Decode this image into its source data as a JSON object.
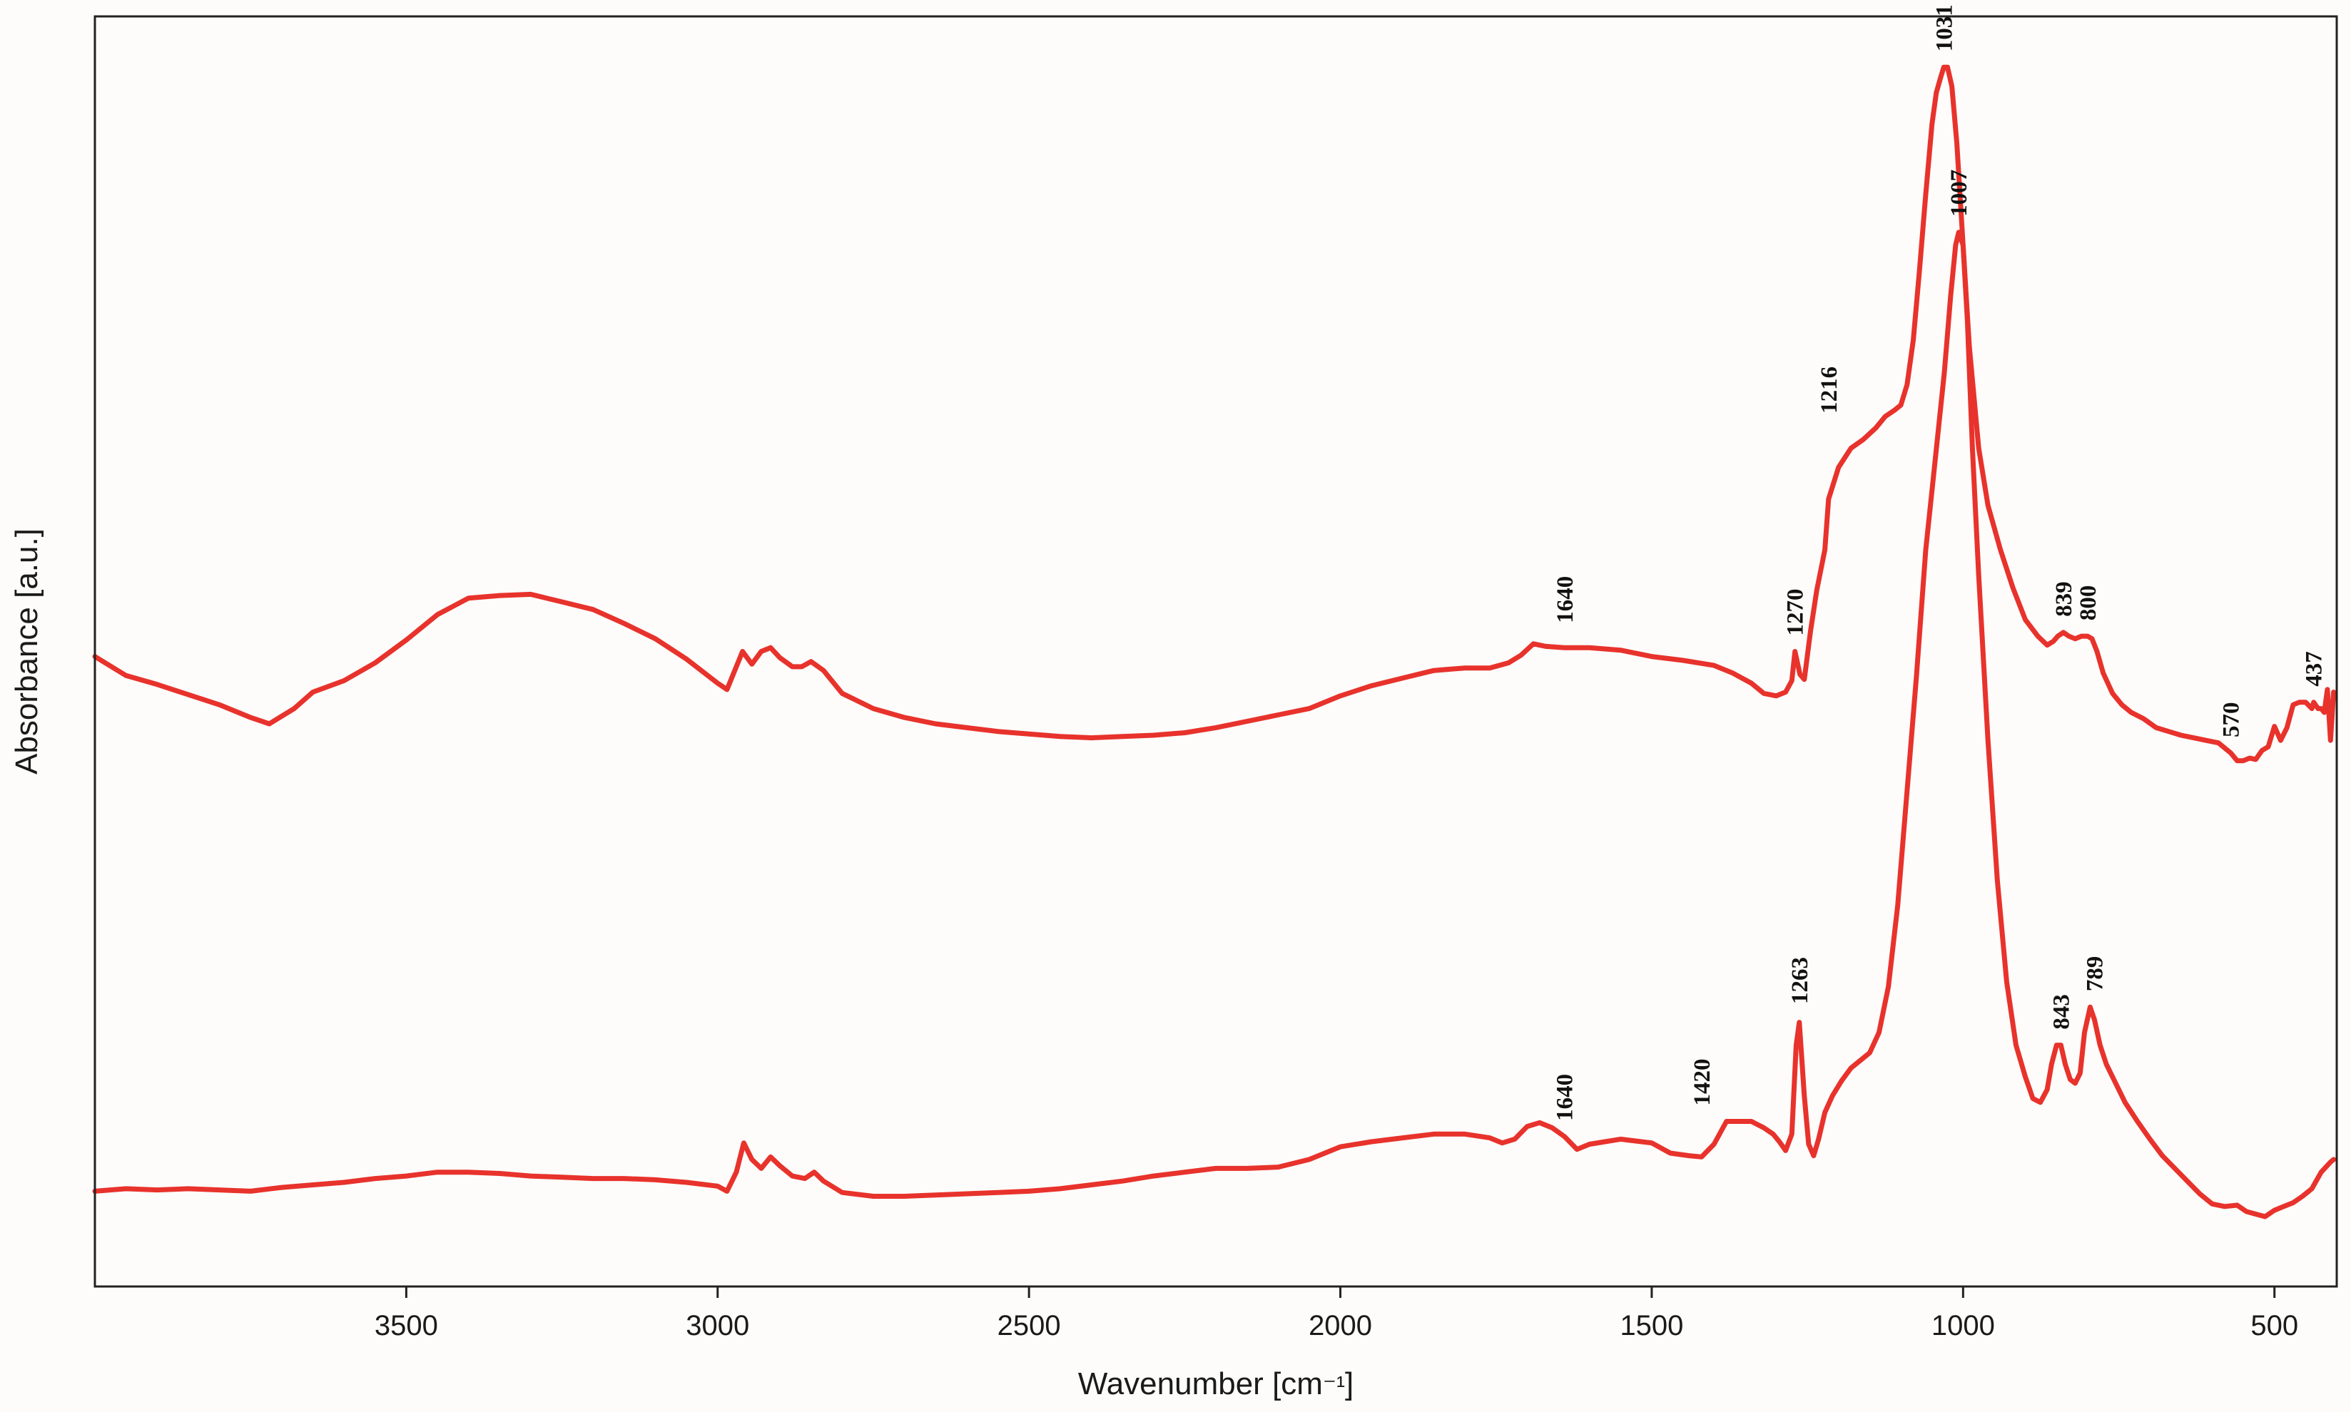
{
  "chart_data": {
    "type": "line",
    "title": "",
    "xlabel": "Wavenumber [cm⁻¹]",
    "ylabel": "Absorbance [a.u.]",
    "x_reversed": true,
    "xlim": [
      4000,
      400
    ],
    "ylim": [
      0,
      1
    ],
    "y_ticks_shown": false,
    "x_ticks": [
      3500,
      3000,
      2500,
      2000,
      1500,
      1000,
      500
    ],
    "x_tick_labels": [
      "3500",
      "3000",
      "2500",
      "2000",
      "1500",
      "1000",
      "500"
    ],
    "grid": false,
    "line_color": "#e8322c",
    "series": [
      {
        "x": [
          4000,
          3950,
          3900,
          3850,
          3800,
          3750,
          3720,
          3680,
          3650,
          3600,
          3550,
          3500,
          3450,
          3400,
          3350,
          3300,
          3250,
          3200,
          3150,
          3100,
          3050,
          3000,
          2985,
          2960,
          2945,
          2930,
          2915,
          2900,
          2880,
          2865,
          2850,
          2830,
          2800,
          2750,
          2700,
          2650,
          2600,
          2550,
          2500,
          2450,
          2400,
          2350,
          2300,
          2250,
          2200,
          2150,
          2100,
          2050,
          2000,
          1950,
          1900,
          1850,
          1800,
          1760,
          1730,
          1710,
          1690,
          1670,
          1640,
          1600,
          1550,
          1500,
          1450,
          1400,
          1370,
          1340,
          1320,
          1300,
          1285,
          1275,
          1270,
          1262,
          1255,
          1245,
          1235,
          1222,
          1216,
          1200,
          1180,
          1160,
          1140,
          1125,
          1110,
          1100,
          1090,
          1080,
          1070,
          1060,
          1050,
          1043,
          1036,
          1031,
          1025,
          1018,
          1010,
          1000,
          990,
          975,
          960,
          940,
          920,
          900,
          880,
          865,
          855,
          848,
          839,
          830,
          820,
          810,
          800,
          793,
          785,
          775,
          760,
          745,
          730,
          710,
          690,
          670,
          650,
          630,
          610,
          590,
          575,
          570,
          560,
          550,
          540,
          530,
          520,
          510,
          500,
          490,
          480,
          470,
          460,
          450,
          440,
          437,
          430,
          425,
          420,
          415,
          410,
          405
        ],
        "y": [
          0.496,
          0.481,
          0.474,
          0.466,
          0.458,
          0.448,
          0.443,
          0.455,
          0.468,
          0.477,
          0.491,
          0.509,
          0.529,
          0.542,
          0.544,
          0.545,
          0.539,
          0.533,
          0.522,
          0.51,
          0.494,
          0.475,
          0.47,
          0.5,
          0.49,
          0.5,
          0.503,
          0.495,
          0.488,
          0.488,
          0.492,
          0.485,
          0.467,
          0.455,
          0.448,
          0.443,
          0.44,
          0.437,
          0.435,
          0.433,
          0.432,
          0.433,
          0.434,
          0.436,
          0.44,
          0.445,
          0.45,
          0.455,
          0.465,
          0.473,
          0.479,
          0.485,
          0.487,
          0.487,
          0.491,
          0.497,
          0.506,
          0.504,
          0.503,
          0.503,
          0.501,
          0.496,
          0.493,
          0.489,
          0.483,
          0.475,
          0.467,
          0.465,
          0.468,
          0.477,
          0.5,
          0.482,
          0.478,
          0.516,
          0.548,
          0.58,
          0.62,
          0.645,
          0.66,
          0.667,
          0.676,
          0.685,
          0.69,
          0.694,
          0.71,
          0.745,
          0.8,
          0.86,
          0.915,
          0.94,
          0.952,
          0.96,
          0.96,
          0.945,
          0.9,
          0.82,
          0.74,
          0.66,
          0.615,
          0.58,
          0.55,
          0.525,
          0.512,
          0.505,
          0.508,
          0.512,
          0.515,
          0.512,
          0.51,
          0.512,
          0.512,
          0.51,
          0.5,
          0.483,
          0.467,
          0.458,
          0.452,
          0.447,
          0.44,
          0.437,
          0.434,
          0.432,
          0.43,
          0.428,
          0.422,
          0.42,
          0.414,
          0.414,
          0.416,
          0.415,
          0.422,
          0.425,
          0.441,
          0.43,
          0.44,
          0.458,
          0.46,
          0.46,
          0.455,
          0.46,
          0.455,
          0.455,
          0.452,
          0.47,
          0.43,
          0.468
        ]
      },
      {
        "x": [
          4000,
          3950,
          3900,
          3850,
          3800,
          3750,
          3700,
          3650,
          3600,
          3550,
          3500,
          3450,
          3400,
          3350,
          3300,
          3250,
          3200,
          3150,
          3100,
          3050,
          3000,
          2985,
          2970,
          2958,
          2945,
          2930,
          2915,
          2900,
          2880,
          2860,
          2845,
          2830,
          2800,
          2750,
          2700,
          2650,
          2600,
          2550,
          2500,
          2450,
          2400,
          2350,
          2300,
          2250,
          2200,
          2150,
          2100,
          2050,
          2000,
          1950,
          1900,
          1850,
          1800,
          1760,
          1740,
          1720,
          1700,
          1680,
          1660,
          1640,
          1620,
          1600,
          1550,
          1500,
          1470,
          1440,
          1420,
          1400,
          1380,
          1360,
          1340,
          1320,
          1305,
          1295,
          1285,
          1275,
          1268,
          1263,
          1255,
          1248,
          1240,
          1232,
          1222,
          1210,
          1195,
          1180,
          1165,
          1150,
          1135,
          1120,
          1105,
          1090,
          1075,
          1060,
          1045,
          1030,
          1020,
          1012,
          1007,
          1000,
          993,
          985,
          975,
          960,
          945,
          930,
          915,
          900,
          888,
          876,
          865,
          858,
          850,
          843,
          836,
          828,
          820,
          812,
          805,
          796,
          789,
          780,
          770,
          755,
          740,
          720,
          700,
          680,
          660,
          640,
          620,
          600,
          580,
          560,
          545,
          530,
          515,
          500,
          485,
          470,
          455,
          440,
          425,
          410,
          405
        ],
        "y": [
          0.075,
          0.077,
          0.076,
          0.077,
          0.076,
          0.075,
          0.078,
          0.08,
          0.082,
          0.085,
          0.087,
          0.09,
          0.09,
          0.089,
          0.087,
          0.086,
          0.085,
          0.085,
          0.084,
          0.082,
          0.079,
          0.075,
          0.09,
          0.113,
          0.1,
          0.093,
          0.102,
          0.095,
          0.087,
          0.085,
          0.09,
          0.083,
          0.074,
          0.071,
          0.071,
          0.072,
          0.073,
          0.074,
          0.075,
          0.077,
          0.08,
          0.083,
          0.087,
          0.09,
          0.093,
          0.093,
          0.094,
          0.1,
          0.11,
          0.114,
          0.117,
          0.12,
          0.12,
          0.117,
          0.113,
          0.116,
          0.126,
          0.129,
          0.125,
          0.118,
          0.108,
          0.112,
          0.116,
          0.113,
          0.105,
          0.103,
          0.102,
          0.112,
          0.13,
          0.13,
          0.13,
          0.125,
          0.12,
          0.114,
          0.107,
          0.12,
          0.19,
          0.208,
          0.15,
          0.112,
          0.103,
          0.116,
          0.137,
          0.15,
          0.162,
          0.172,
          0.178,
          0.184,
          0.2,
          0.236,
          0.3,
          0.39,
          0.48,
          0.58,
          0.65,
          0.72,
          0.78,
          0.82,
          0.83,
          0.82,
          0.76,
          0.66,
          0.56,
          0.43,
          0.32,
          0.24,
          0.19,
          0.165,
          0.148,
          0.145,
          0.155,
          0.175,
          0.19,
          0.19,
          0.175,
          0.163,
          0.16,
          0.168,
          0.2,
          0.22,
          0.21,
          0.19,
          0.175,
          0.16,
          0.145,
          0.13,
          0.116,
          0.103,
          0.093,
          0.083,
          0.073,
          0.065,
          0.063,
          0.064,
          0.059,
          0.057,
          0.055,
          0.06,
          0.063,
          0.066,
          0.071,
          0.077,
          0.09,
          0.098,
          0.1
        ]
      }
    ],
    "annotations": [
      {
        "text": "1031",
        "x": 1031,
        "y": 0.96
      },
      {
        "text": "1216",
        "x": 1216,
        "y": 0.675
      },
      {
        "text": "1640",
        "x": 1640,
        "y": 0.51
      },
      {
        "text": "1270",
        "x": 1270,
        "y": 0.5
      },
      {
        "text": "839",
        "x": 839,
        "y": 0.515
      },
      {
        "text": "800",
        "x": 800,
        "y": 0.512
      },
      {
        "text": "570",
        "x": 570,
        "y": 0.42
      },
      {
        "text": "437",
        "x": 437,
        "y": 0.46
      },
      {
        "text": "1007",
        "x": 1007,
        "y": 0.83
      },
      {
        "text": "1640",
        "x": 1640,
        "y": 0.118
      },
      {
        "text": "1420",
        "x": 1420,
        "y": 0.13
      },
      {
        "text": "1263",
        "x": 1263,
        "y": 0.21
      },
      {
        "text": "843",
        "x": 843,
        "y": 0.19
      },
      {
        "text": "789",
        "x": 789,
        "y": 0.22
      }
    ]
  }
}
